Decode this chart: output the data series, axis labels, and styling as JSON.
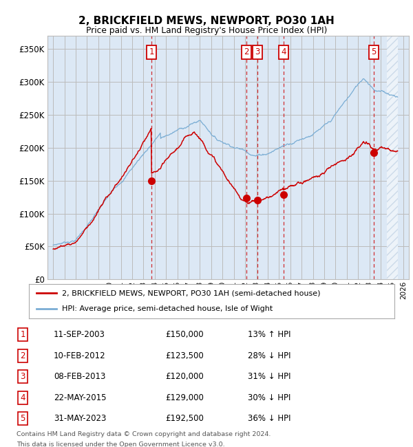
{
  "title": "2, BRICKFIELD MEWS, NEWPORT, PO30 1AH",
  "subtitle": "Price paid vs. HM Land Registry's House Price Index (HPI)",
  "red_label": "2, BRICKFIELD MEWS, NEWPORT, PO30 1AH (semi-detached house)",
  "blue_label": "HPI: Average price, semi-detached house, Isle of Wight",
  "footer_line1": "Contains HM Land Registry data © Crown copyright and database right 2024.",
  "footer_line2": "This data is licensed under the Open Government Licence v3.0.",
  "transactions": [
    {
      "num": 1,
      "date": "11-SEP-2003",
      "price": 150000,
      "pct": "13%",
      "dir": "↑",
      "x_year": 2003.71
    },
    {
      "num": 2,
      "date": "10-FEB-2012",
      "price": 123500,
      "pct": "28%",
      "dir": "↓",
      "x_year": 2012.11
    },
    {
      "num": 3,
      "date": "08-FEB-2013",
      "price": 120000,
      "pct": "31%",
      "dir": "↓",
      "x_year": 2013.11
    },
    {
      "num": 4,
      "date": "22-MAY-2015",
      "price": 129000,
      "pct": "30%",
      "dir": "↓",
      "x_year": 2015.39
    },
    {
      "num": 5,
      "date": "31-MAY-2023",
      "price": 192500,
      "pct": "36%",
      "dir": "↓",
      "x_year": 2023.41
    }
  ],
  "ylim": [
    0,
    370000
  ],
  "xlim": [
    1994.5,
    2026.5
  ],
  "yticks": [
    0,
    50000,
    100000,
    150000,
    200000,
    250000,
    300000,
    350000
  ],
  "ytick_labels": [
    "£0",
    "£50K",
    "£100K",
    "£150K",
    "£200K",
    "£250K",
    "£300K",
    "£350K"
  ],
  "background_color": "#dce8f5",
  "grid_color": "#bbbbbb",
  "red_color": "#cc0000",
  "blue_color": "#7aadd4",
  "hatch_color": "#bbccdd",
  "future_start": 2024.5
}
